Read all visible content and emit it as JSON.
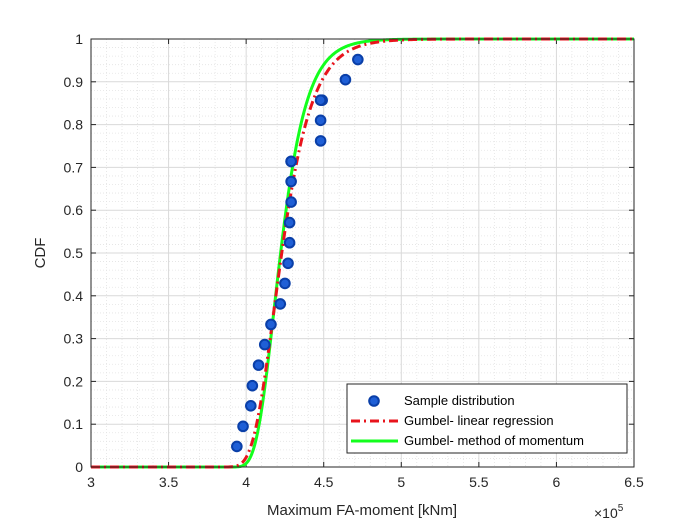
{
  "chart_data": {
    "type": "line",
    "xlabel": "Maximum FA-moment [kNm]",
    "ylabel": "CDF",
    "x_exponent_label": "×10",
    "x_exponent_power": "5",
    "xlim": [
      3,
      6.5
    ],
    "ylim": [
      0,
      1
    ],
    "xticks": [
      "3",
      "3.5",
      "4",
      "4.5",
      "5",
      "5.5",
      "6",
      "6.5"
    ],
    "yticks": [
      "0",
      "0.1",
      "0.2",
      "0.3",
      "0.4",
      "0.5",
      "0.6",
      "0.7",
      "0.8",
      "0.9",
      "1"
    ],
    "grid": true,
    "minor_grid": true,
    "legend_position": "bottom-right",
    "series": [
      {
        "name": "Sample distribution",
        "style": "markers",
        "color": "#1f5fd6",
        "marker_edge": "#0a3fa8",
        "x": [
          3.94,
          3.98,
          4.03,
          4.04,
          4.08,
          4.12,
          4.16,
          4.22,
          4.25,
          4.27,
          4.28,
          4.28,
          4.29,
          4.29,
          4.29,
          4.29,
          4.48,
          4.48,
          4.49,
          4.48,
          4.64,
          4.72
        ],
        "y": [
          0.048,
          0.095,
          0.143,
          0.19,
          0.238,
          0.286,
          0.333,
          0.381,
          0.429,
          0.476,
          0.524,
          0.571,
          0.619,
          0.667,
          0.714,
          0.714,
          0.762,
          0.81,
          0.857,
          0.857,
          0.905,
          0.952
        ]
      },
      {
        "name": "Gumbel- linear regression",
        "style": "dashdot",
        "color": "#e8141c",
        "mu": 4.18,
        "beta": 0.135
      },
      {
        "name": "Gumbel- method of momentum",
        "style": "solid",
        "color": "#13ff1d",
        "mu": 4.18,
        "beta": 0.115
      }
    ]
  }
}
